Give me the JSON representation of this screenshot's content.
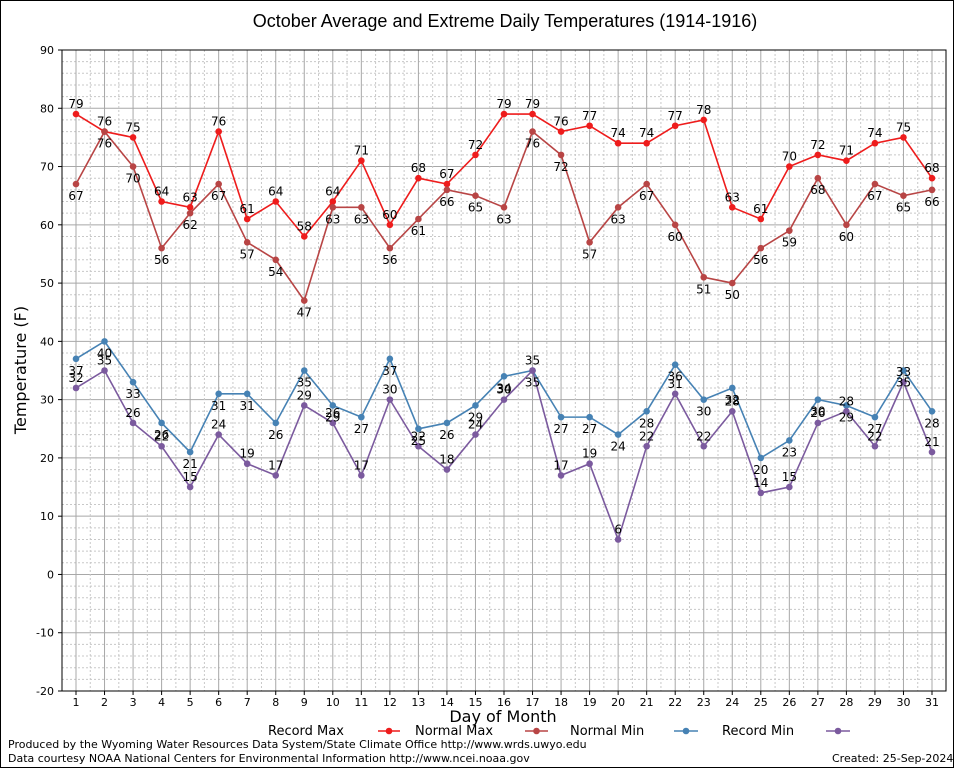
{
  "chart_data": {
    "type": "line",
    "title": "October Average and Extreme Daily Temperatures (1914-1916)",
    "xlabel": "Day of Month",
    "ylabel": "Temperature (F)",
    "xlim": [
      1,
      31
    ],
    "ylim": [
      -20,
      90
    ],
    "yticks": [
      -20,
      -10,
      0,
      10,
      20,
      30,
      40,
      50,
      60,
      70,
      80,
      90
    ],
    "grid": true,
    "x": [
      1,
      2,
      3,
      4,
      5,
      6,
      7,
      8,
      9,
      10,
      11,
      12,
      13,
      14,
      15,
      16,
      17,
      18,
      19,
      20,
      21,
      22,
      23,
      24,
      25,
      26,
      27,
      28,
      29,
      30,
      31
    ],
    "series": [
      {
        "name": "Record Max",
        "color": "#ee1c1c",
        "values": [
          79,
          76,
          75,
          64,
          63,
          76,
          61,
          64,
          58,
          64,
          71,
          60,
          68,
          67,
          72,
          79,
          79,
          76,
          77,
          74,
          74,
          77,
          78,
          63,
          61,
          70,
          72,
          71,
          74,
          75,
          68
        ]
      },
      {
        "name": "Normal Max",
        "color": "#b84545",
        "values": [
          67,
          76,
          70,
          56,
          62,
          67,
          57,
          54,
          47,
          63,
          63,
          56,
          61,
          66,
          65,
          63,
          76,
          72,
          57,
          63,
          67,
          60,
          51,
          50,
          56,
          59,
          68,
          60,
          67,
          65,
          66
        ]
      },
      {
        "name": "Normal Min",
        "color": "#4682b4",
        "values": [
          37,
          40,
          33,
          26,
          21,
          31,
          31,
          26,
          35,
          29,
          27,
          37,
          25,
          26,
          29,
          34,
          35,
          27,
          27,
          24,
          28,
          36,
          30,
          32,
          20,
          23,
          30,
          29,
          27,
          35,
          28
        ]
      },
      {
        "name": "Record Min",
        "color": "#7b5a9e",
        "values": [
          32,
          35,
          26,
          22,
          15,
          24,
          19,
          17,
          29,
          26,
          17,
          30,
          22,
          18,
          24,
          30,
          35,
          17,
          19,
          6,
          22,
          31,
          22,
          28,
          14,
          15,
          26,
          28,
          22,
          33,
          21
        ]
      }
    ],
    "legend_position": "bottom"
  },
  "footer": {
    "produced_by": "Produced by the Wyoming Water Resources Data System/State Climate Office http://www.wrds.uwyo.edu",
    "data_courtesy": "Data courtesy NOAA National Centers for Environmental Information http://www.ncei.noaa.gov",
    "created": "Created:  25-Sep-2024"
  }
}
